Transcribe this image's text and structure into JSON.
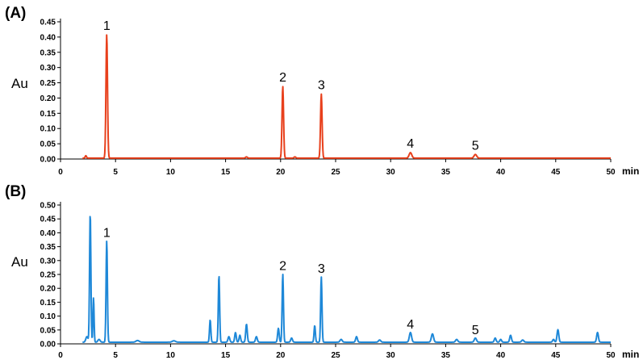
{
  "chart_data": [
    {
      "type": "line",
      "panel_label": "(A)",
      "ylabel": "Au",
      "xlabel": "min",
      "xlim": [
        0,
        50
      ],
      "ylim": [
        0,
        0.45
      ],
      "x_ticks": [
        "0",
        "5",
        "10",
        "15",
        "20",
        "25",
        "30",
        "35",
        "40",
        "45",
        "50"
      ],
      "y_ticks": [
        "0.00",
        "0.05",
        "0.10",
        "0.15",
        "0.20",
        "0.25",
        "0.30",
        "0.35",
        "0.40",
        "0.45"
      ],
      "color": "#e8401c",
      "baseline": 0.003,
      "peaks": [
        {
          "rt": 2.3,
          "h": 0.008,
          "w": 0.06
        },
        {
          "rt": 4.2,
          "h": 0.405,
          "w": 0.07
        },
        {
          "rt": 16.9,
          "h": 0.004,
          "w": 0.08
        },
        {
          "rt": 20.2,
          "h": 0.235,
          "w": 0.07
        },
        {
          "rt": 21.3,
          "h": 0.004,
          "w": 0.08
        },
        {
          "rt": 23.7,
          "h": 0.21,
          "w": 0.07
        },
        {
          "rt": 31.8,
          "h": 0.018,
          "w": 0.12
        },
        {
          "rt": 37.7,
          "h": 0.012,
          "w": 0.12
        }
      ],
      "peak_labels": [
        {
          "text": "1",
          "x": 4.2,
          "y": 0.405
        },
        {
          "text": "2",
          "x": 20.2,
          "y": 0.235
        },
        {
          "text": "3",
          "x": 23.7,
          "y": 0.21
        },
        {
          "text": "4",
          "x": 31.8,
          "y": 0.018
        },
        {
          "text": "5",
          "x": 37.7,
          "y": 0.012
        }
      ]
    },
    {
      "type": "line",
      "panel_label": "(B)",
      "ylabel": "Au",
      "xlabel": "min",
      "xlim": [
        0,
        50
      ],
      "ylim": [
        0,
        0.5
      ],
      "x_ticks": [
        "0",
        "5",
        "10",
        "15",
        "20",
        "25",
        "30",
        "35",
        "40",
        "45",
        "50"
      ],
      "y_ticks": [
        "0.00",
        "0.05",
        "0.10",
        "0.15",
        "0.20",
        "0.25",
        "0.30",
        "0.35",
        "0.40",
        "0.45",
        "0.50"
      ],
      "color": "#1e88d8",
      "baseline": 0.006,
      "peaks": [
        {
          "rt": 2.4,
          "h": 0.02,
          "w": 0.1
        },
        {
          "rt": 2.7,
          "h": 0.465,
          "w": 0.06
        },
        {
          "rt": 3.0,
          "h": 0.16,
          "w": 0.05
        },
        {
          "rt": 3.5,
          "h": 0.01,
          "w": 0.1
        },
        {
          "rt": 4.2,
          "h": 0.365,
          "w": 0.06
        },
        {
          "rt": 7.0,
          "h": 0.006,
          "w": 0.15
        },
        {
          "rt": 10.3,
          "h": 0.005,
          "w": 0.15
        },
        {
          "rt": 13.6,
          "h": 0.08,
          "w": 0.06
        },
        {
          "rt": 14.4,
          "h": 0.24,
          "w": 0.06
        },
        {
          "rt": 15.3,
          "h": 0.02,
          "w": 0.08
        },
        {
          "rt": 15.9,
          "h": 0.035,
          "w": 0.07
        },
        {
          "rt": 16.3,
          "h": 0.025,
          "w": 0.07
        },
        {
          "rt": 16.9,
          "h": 0.065,
          "w": 0.07
        },
        {
          "rt": 17.8,
          "h": 0.02,
          "w": 0.08
        },
        {
          "rt": 19.8,
          "h": 0.05,
          "w": 0.07
        },
        {
          "rt": 20.2,
          "h": 0.245,
          "w": 0.06
        },
        {
          "rt": 21.0,
          "h": 0.015,
          "w": 0.08
        },
        {
          "rt": 23.1,
          "h": 0.06,
          "w": 0.06
        },
        {
          "rt": 23.7,
          "h": 0.235,
          "w": 0.06
        },
        {
          "rt": 25.5,
          "h": 0.01,
          "w": 0.1
        },
        {
          "rt": 26.9,
          "h": 0.02,
          "w": 0.08
        },
        {
          "rt": 29.0,
          "h": 0.008,
          "w": 0.1
        },
        {
          "rt": 31.8,
          "h": 0.035,
          "w": 0.1
        },
        {
          "rt": 33.8,
          "h": 0.03,
          "w": 0.1
        },
        {
          "rt": 36.0,
          "h": 0.01,
          "w": 0.1
        },
        {
          "rt": 37.7,
          "h": 0.015,
          "w": 0.1
        },
        {
          "rt": 39.5,
          "h": 0.015,
          "w": 0.08
        },
        {
          "rt": 40.0,
          "h": 0.01,
          "w": 0.08
        },
        {
          "rt": 40.9,
          "h": 0.025,
          "w": 0.08
        },
        {
          "rt": 42.0,
          "h": 0.008,
          "w": 0.1
        },
        {
          "rt": 44.8,
          "h": 0.01,
          "w": 0.08
        },
        {
          "rt": 45.2,
          "h": 0.045,
          "w": 0.08
        },
        {
          "rt": 48.8,
          "h": 0.035,
          "w": 0.08
        }
      ],
      "peak_labels": [
        {
          "text": "1",
          "x": 4.2,
          "y": 0.365
        },
        {
          "text": "2",
          "x": 20.2,
          "y": 0.245
        },
        {
          "text": "3",
          "x": 23.7,
          "y": 0.235
        },
        {
          "text": "4",
          "x": 31.8,
          "y": 0.035
        },
        {
          "text": "5",
          "x": 37.7,
          "y": 0.015
        }
      ]
    }
  ]
}
